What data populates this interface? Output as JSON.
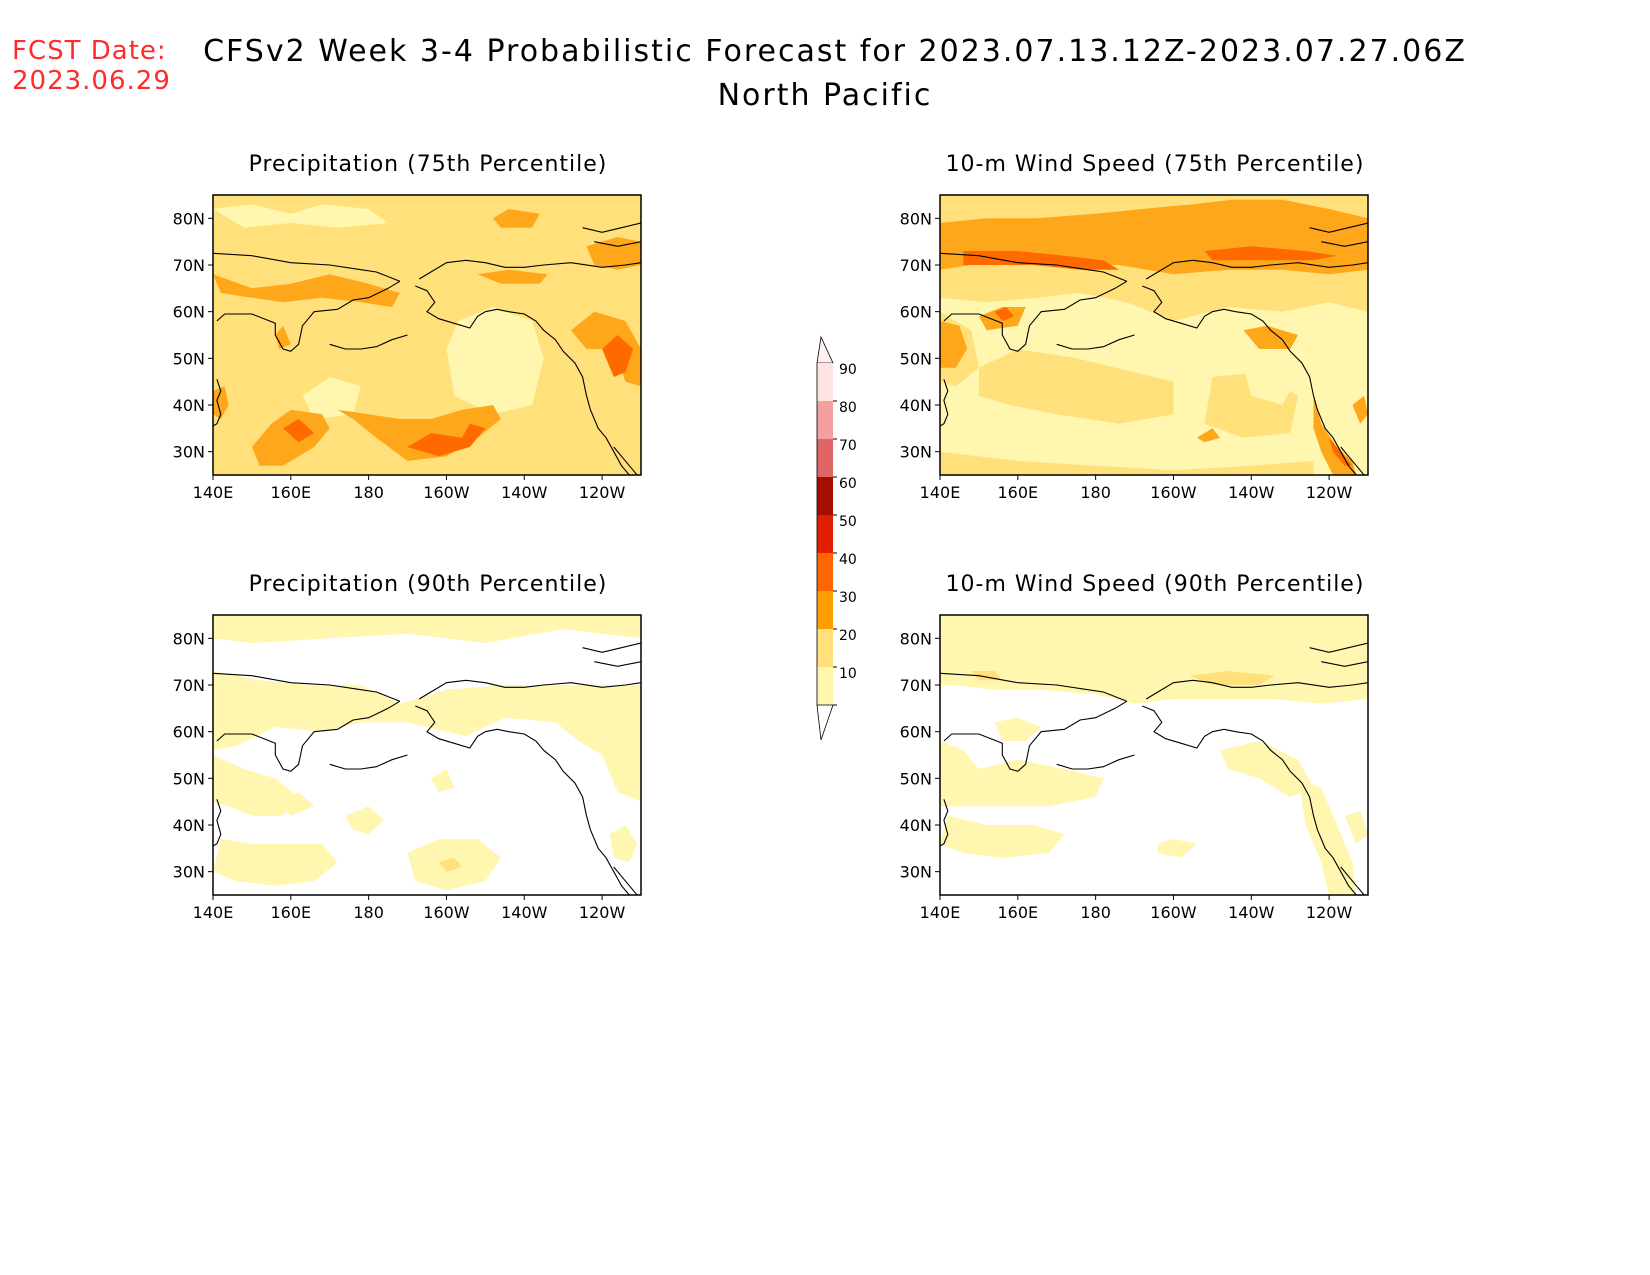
{
  "header": {
    "fcst_label": "FCST Date:",
    "fcst_date": "2023.06.29",
    "title": "CFSv2 Week 3-4 Probabilistic Forecast for 2023.07.13.12Z-2023.07.27.06Z",
    "subtitle": "North Pacific"
  },
  "axes": {
    "lon_labels": [
      "140E",
      "160E",
      "180",
      "160W",
      "140W",
      "120W"
    ],
    "lat_labels": [
      "80N",
      "70N",
      "60N",
      "50N",
      "40N",
      "30N"
    ]
  },
  "panels": [
    {
      "id": "precip75",
      "title": "Precipitation (75th Percentile)"
    },
    {
      "id": "wind75",
      "title": "10-m Wind Speed (75th Percentile)"
    },
    {
      "id": "precip90",
      "title": "Precipitation (90th Percentile)"
    },
    {
      "id": "wind90",
      "title": "10-m Wind Speed (90th Percentile)"
    }
  ],
  "colorbar": {
    "labels": [
      "90",
      "80",
      "70",
      "60",
      "50",
      "40",
      "30",
      "20",
      "10"
    ],
    "colors": [
      "#ffe4e1",
      "#f4a0a0",
      "#e06666",
      "#a50f00",
      "#e01e00",
      "#ff6600",
      "#ff9e00",
      "#ffe07a",
      "#fff6b0"
    ]
  },
  "palette": {
    "c10": "#fff6b0",
    "c20": "#ffe07a",
    "c30": "#ffa71a",
    "c40": "#ff6a00",
    "c50": "#e01e00"
  }
}
